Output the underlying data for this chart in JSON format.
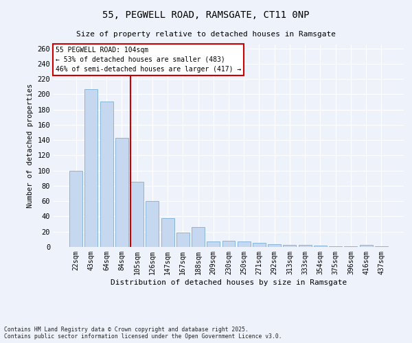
{
  "title": "55, PEGWELL ROAD, RAMSGATE, CT11 0NP",
  "subtitle": "Size of property relative to detached houses in Ramsgate",
  "xlabel": "Distribution of detached houses by size in Ramsgate",
  "ylabel": "Number of detached properties",
  "bar_color": "#c5d8f0",
  "bar_edgecolor": "#7bafd4",
  "background_color": "#eef2fa",
  "grid_color": "#ffffff",
  "vline_color": "#cc0000",
  "categories": [
    "22sqm",
    "43sqm",
    "64sqm",
    "84sqm",
    "105sqm",
    "126sqm",
    "147sqm",
    "167sqm",
    "188sqm",
    "209sqm",
    "230sqm",
    "250sqm",
    "271sqm",
    "292sqm",
    "313sqm",
    "333sqm",
    "354sqm",
    "375sqm",
    "396sqm",
    "416sqm",
    "437sqm"
  ],
  "values": [
    100,
    207,
    190,
    143,
    85,
    60,
    38,
    19,
    26,
    7,
    8,
    7,
    5,
    4,
    3,
    3,
    2,
    1,
    1,
    3,
    1
  ],
  "property_label": "55 PEGWELL ROAD: 104sqm",
  "pct_smaller": 53,
  "n_smaller": 483,
  "pct_larger_semi": 46,
  "n_larger_semi": 417,
  "vline_x_index": 4,
  "ylim": [
    0,
    265
  ],
  "yticks": [
    0,
    20,
    40,
    60,
    80,
    100,
    120,
    140,
    160,
    180,
    200,
    220,
    240,
    260
  ],
  "footer_line1": "Contains HM Land Registry data © Crown copyright and database right 2025.",
  "footer_line2": "Contains public sector information licensed under the Open Government Licence v3.0."
}
